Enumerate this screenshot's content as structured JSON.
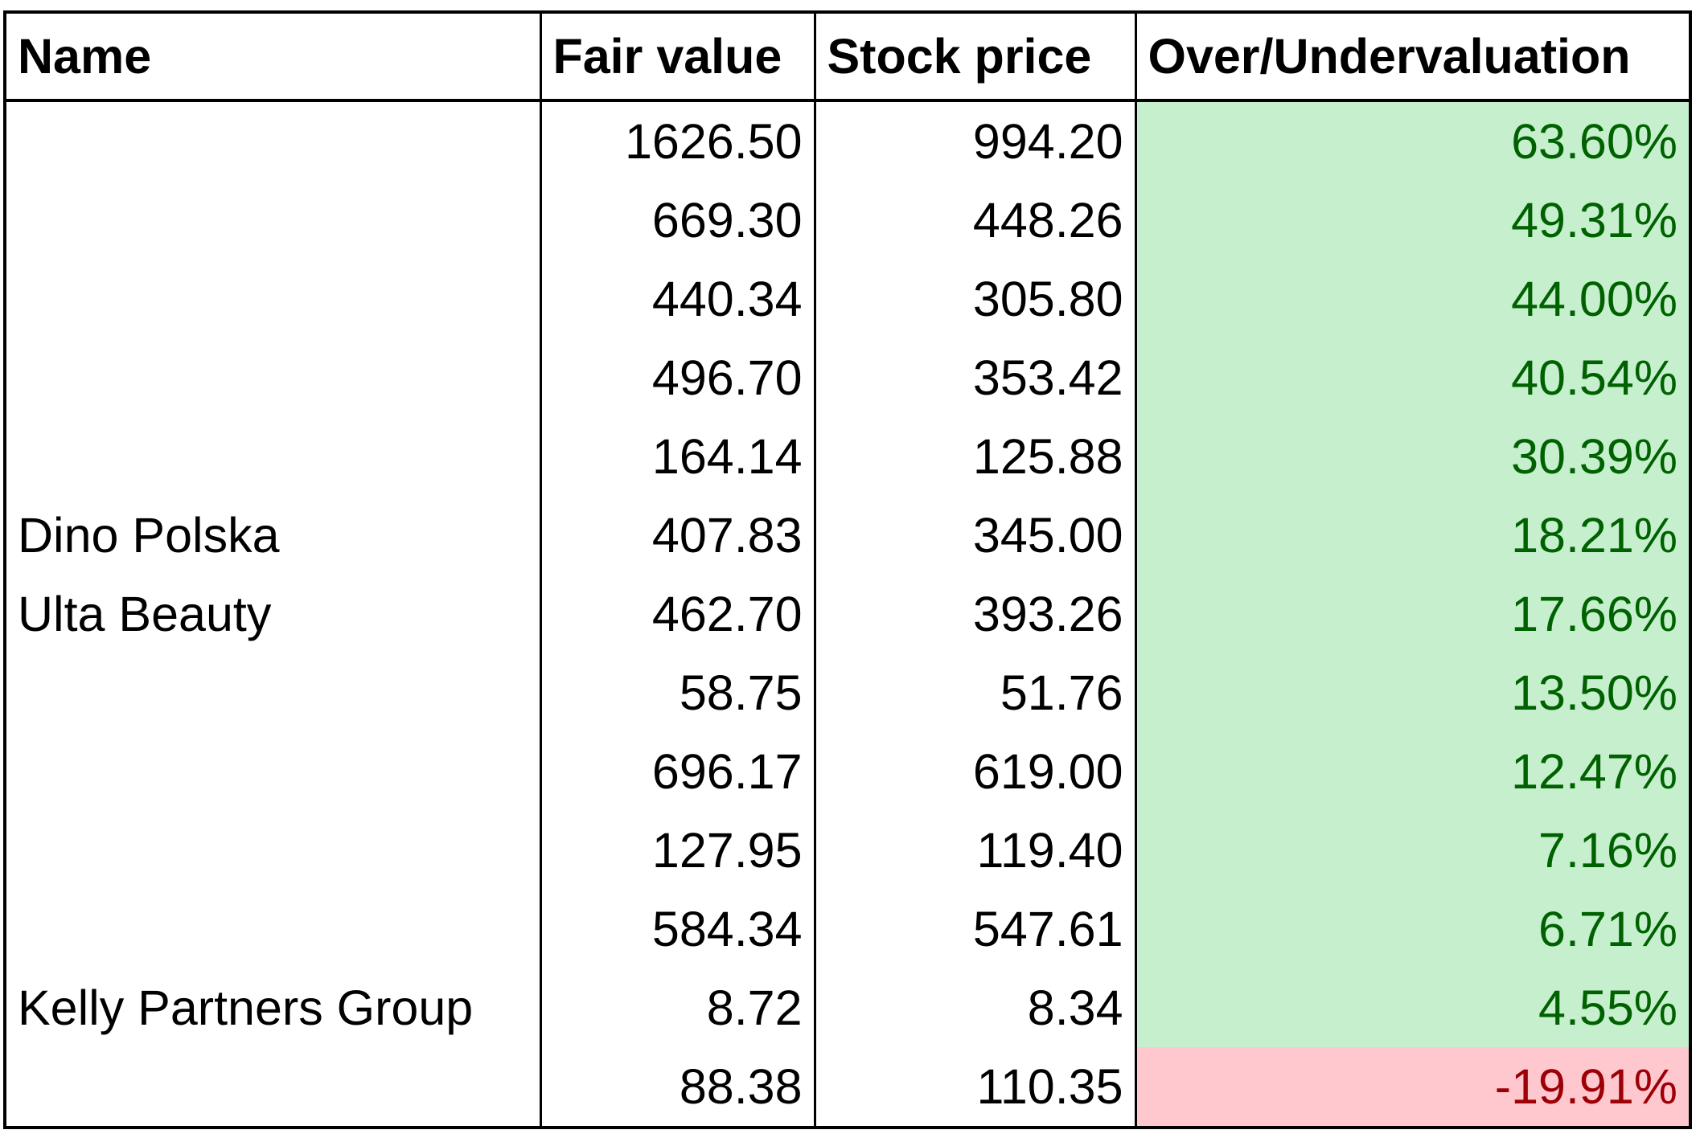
{
  "table": {
    "headers": [
      "Name",
      "Fair value",
      "Stock price",
      "Over/Undervaluation"
    ],
    "rows": [
      [
        null,
        "1626.50",
        "994.20",
        "63.60%"
      ],
      [
        null,
        "669.30",
        "448.26",
        "49.31%"
      ],
      [
        null,
        "440.34",
        "305.80",
        "44.00%"
      ],
      [
        null,
        "496.70",
        "353.42",
        "40.54%"
      ],
      [
        null,
        "164.14",
        "125.88",
        "30.39%"
      ],
      [
        "Dino Polska",
        "407.83",
        "345.00",
        "18.21%"
      ],
      [
        "Ulta Beauty",
        "462.70",
        "393.26",
        "17.66%"
      ],
      [
        null,
        "58.75",
        "51.76",
        "13.50%"
      ],
      [
        null,
        "696.17",
        "619.00",
        "12.47%"
      ],
      [
        null,
        "127.95",
        "119.40",
        "7.16%"
      ],
      [
        null,
        "584.34",
        "547.61",
        "6.71%"
      ],
      [
        "Kelly Partners Group",
        "8.72",
        "8.34",
        "4.55%"
      ],
      [
        null,
        "88.38",
        "110.35",
        "-19.91%"
      ]
    ]
  }
}
